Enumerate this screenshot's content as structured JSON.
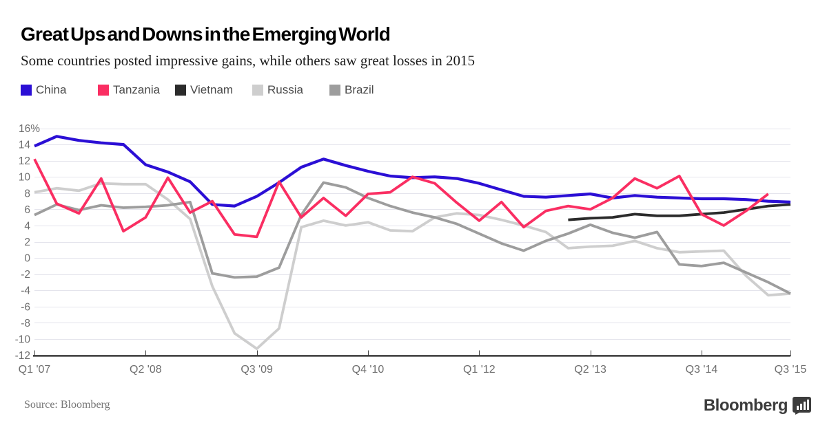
{
  "header": {
    "title": "Great Ups and Downs in the Emerging World",
    "subtitle": "Some countries posted impressive gains, while others saw great losses in 2015"
  },
  "legend": {
    "note": "legend items are generated from chart_data.series"
  },
  "chart_data": {
    "type": "line",
    "title": "Great Ups and Downs in the Emerging World",
    "subtitle": "Some countries posted impressive gains, while others saw great losses in 2015",
    "unit": "percent",
    "grid": true,
    "legend_position": "top-left",
    "ylim": [
      -12,
      16
    ],
    "y_axis": {
      "max": 16,
      "min": -12,
      "step": 2,
      "labels": [
        "16%",
        "14",
        "12",
        "10",
        "8",
        "6",
        "4",
        "2",
        "0",
        "-2",
        "-4",
        "-6",
        "-8",
        "-10",
        "-12"
      ]
    },
    "x_axis": {
      "tick_indices": [
        0,
        5,
        10,
        15,
        20,
        25,
        30,
        34
      ],
      "tick_labels": [
        "Q1 '07",
        "Q2 '08",
        "Q3 '09",
        "Q4 '10",
        "Q1 '12",
        "Q2 '13",
        "Q3 '14",
        "Q3 '15"
      ]
    },
    "categories": [
      "Q1 '07",
      "Q2 '07",
      "Q3 '07",
      "Q4 '07",
      "Q1 '08",
      "Q2 '08",
      "Q3 '08",
      "Q4 '08",
      "Q1 '09",
      "Q2 '09",
      "Q3 '09",
      "Q4 '09",
      "Q1 '10",
      "Q2 '10",
      "Q3 '10",
      "Q4 '10",
      "Q1 '11",
      "Q2 '11",
      "Q3 '11",
      "Q4 '11",
      "Q1 '12",
      "Q2 '12",
      "Q3 '12",
      "Q4 '12",
      "Q1 '13",
      "Q2 '13",
      "Q3 '13",
      "Q4 '13",
      "Q1 '14",
      "Q2 '14",
      "Q3 '14",
      "Q4 '14",
      "Q1 '15",
      "Q2 '15",
      "Q3 '15"
    ],
    "series": [
      {
        "name": "China",
        "color": "#2b0fd5",
        "values": [
          13.8,
          15.0,
          14.5,
          14.2,
          14.0,
          11.5,
          10.6,
          9.4,
          6.6,
          6.4,
          7.6,
          9.3,
          11.2,
          12.2,
          11.4,
          10.7,
          10.1,
          9.9,
          10.0,
          9.8,
          9.2,
          8.4,
          7.6,
          7.5,
          7.7,
          7.9,
          7.4,
          7.7,
          7.5,
          7.4,
          7.3,
          7.3,
          7.2,
          7.0,
          6.9
        ]
      },
      {
        "name": "Tanzania",
        "color": "#fa2e62",
        "values": [
          12.2,
          6.7,
          5.5,
          9.8,
          3.3,
          5.0,
          9.9,
          5.6,
          7.0,
          2.9,
          2.6,
          9.4,
          5.0,
          7.4,
          5.2,
          7.9,
          8.1,
          10.0,
          9.2,
          6.8,
          4.6,
          6.9,
          3.8,
          5.8,
          6.4,
          6.0,
          7.4,
          9.8,
          8.6,
          10.1,
          5.4,
          4.0,
          5.8,
          7.9,
          null
        ]
      },
      {
        "name": "Vietnam",
        "color": "#2b2b2b",
        "values": [
          null,
          null,
          null,
          null,
          null,
          null,
          null,
          null,
          null,
          null,
          null,
          null,
          null,
          null,
          null,
          null,
          null,
          null,
          null,
          null,
          null,
          null,
          null,
          null,
          4.7,
          4.9,
          5.0,
          5.4,
          5.2,
          5.2,
          5.4,
          5.6,
          6.0,
          6.4,
          6.6
        ]
      },
      {
        "name": "Russia",
        "color": "#cecece",
        "values": [
          8.1,
          8.6,
          8.3,
          9.2,
          9.1,
          9.1,
          7.2,
          4.8,
          -3.5,
          -9.3,
          -11.2,
          -8.7,
          3.8,
          4.6,
          4.0,
          4.4,
          3.4,
          3.3,
          5.0,
          5.5,
          5.3,
          4.7,
          4.0,
          3.2,
          1.2,
          1.4,
          1.5,
          2.1,
          1.2,
          0.7,
          0.8,
          0.9,
          -2.2,
          -4.6,
          -4.4
        ]
      },
      {
        "name": "Brazil",
        "color": "#9d9d9d",
        "values": [
          5.3,
          6.6,
          5.9,
          6.5,
          6.2,
          6.3,
          6.5,
          6.9,
          -1.9,
          -2.4,
          -2.3,
          -1.2,
          5.3,
          9.3,
          8.7,
          7.4,
          6.4,
          5.6,
          5.0,
          4.2,
          3.0,
          1.8,
          0.9,
          2.1,
          3.0,
          4.1,
          3.1,
          2.5,
          3.2,
          -0.8,
          -1.0,
          -0.6,
          -1.8,
          -3.0,
          -4.4
        ]
      }
    ],
    "style": {
      "gridline_color": "#e4e4ec",
      "axis_color": "#000000",
      "tick_color": "#444444",
      "axis_label_color": "#6f6f6f",
      "draw_order": [
        "Russia",
        "Brazil",
        "Vietnam",
        "China",
        "Tanzania"
      ]
    }
  },
  "footer": {
    "source": "Source: Bloomberg",
    "logo_text": "Bloomberg",
    "logo_icon": "bar-chart-badge-icon"
  }
}
